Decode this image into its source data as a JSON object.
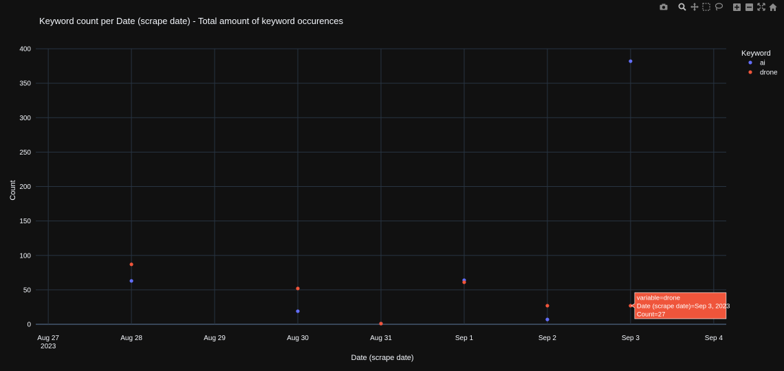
{
  "chart_data": {
    "type": "scatter",
    "title": "Keyword count per Date (scrape date) - Total amount of keyword occurences",
    "xlabel": "Date (scrape date)",
    "ylabel": "Count",
    "x_ticks": [
      "Aug 27",
      "Aug 28",
      "Aug 29",
      "Aug 30",
      "Aug 31",
      "Sep 1",
      "Sep 2",
      "Sep 3",
      "Sep 4"
    ],
    "x_tick_year": "2023",
    "x_range": [
      "2023-08-27",
      "2023-09-04"
    ],
    "ylim": [
      0,
      400
    ],
    "y_ticks": [
      0,
      50,
      100,
      150,
      200,
      250,
      300,
      350,
      400
    ],
    "grid": true,
    "legend": {
      "title": "Keyword",
      "position": "top-right"
    },
    "series": [
      {
        "name": "ai",
        "color": "#636efa",
        "points": [
          {
            "x": "2023-08-28",
            "y": 63
          },
          {
            "x": "2023-08-30",
            "y": 19
          },
          {
            "x": "2023-08-31",
            "y": 1
          },
          {
            "x": "2023-09-01",
            "y": 64
          },
          {
            "x": "2023-09-02",
            "y": 7
          },
          {
            "x": "2023-09-03",
            "y": 382
          }
        ]
      },
      {
        "name": "drone",
        "color": "#ef553b",
        "points": [
          {
            "x": "2023-08-28",
            "y": 87
          },
          {
            "x": "2023-08-30",
            "y": 52
          },
          {
            "x": "2023-08-31",
            "y": 1
          },
          {
            "x": "2023-09-01",
            "y": 61
          },
          {
            "x": "2023-09-02",
            "y": 27
          },
          {
            "x": "2023-09-03",
            "y": 27
          }
        ]
      }
    ],
    "hover": {
      "series": "drone",
      "x": "2023-09-03",
      "y": 27,
      "lines": [
        "variable=drone",
        "Date (scrape date)=Sep 3, 2023",
        "Count=27"
      ]
    }
  },
  "modebar": {
    "icons": [
      "camera-icon",
      "zoom-icon",
      "pan-icon",
      "box-select-icon",
      "lasso-select-icon",
      "zoom-in-icon",
      "zoom-out-icon",
      "autoscale-icon",
      "reset-axes-icon"
    ]
  },
  "colors": {
    "background": "#111111",
    "grid": "#283442",
    "text": "#f2f5fa",
    "modebar": "#a0a0a0"
  }
}
